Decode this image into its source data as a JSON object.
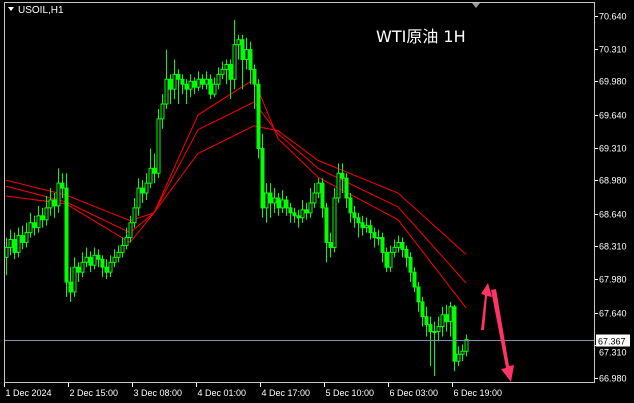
{
  "symbol_label": "USOIL,H1",
  "chart_data": {
    "type": "candlestick",
    "title": "WTI原油 1H",
    "ylim": [
      66.98,
      70.64
    ],
    "y_ticks": [
      "70.640",
      "70.310",
      "69.980",
      "69.640",
      "69.310",
      "68.980",
      "68.640",
      "68.310",
      "67.980",
      "67.640",
      "67.310",
      "66.980"
    ],
    "x_ticks": [
      {
        "label": "1 Dec 2024",
        "index": 0
      },
      {
        "label": "2 Dec 15:00",
        "index": 16
      },
      {
        "label": "3 Dec 08:00",
        "index": 32
      },
      {
        "label": "4 Dec 01:00",
        "index": 48
      },
      {
        "label": "4 Dec 17:00",
        "index": 64
      },
      {
        "label": "5 Dec 10:00",
        "index": 80
      },
      {
        "label": "6 Dec 03:00",
        "index": 96
      },
      {
        "label": "6 Dec 19:00",
        "index": 112
      }
    ],
    "current_price": "67.367",
    "grid": false,
    "colors": {
      "background": "#000000",
      "candle": "#00ff00",
      "moving_average": "#ff0000",
      "price_line": "#7f93a8",
      "arrow": "#ff3366",
      "axis": "#ffffff"
    },
    "candles": [
      [
        68.2,
        68.4,
        68.02,
        68.3
      ],
      [
        68.3,
        68.48,
        68.22,
        68.38
      ],
      [
        68.38,
        68.45,
        68.18,
        68.25
      ],
      [
        68.25,
        68.5,
        68.2,
        68.42
      ],
      [
        68.42,
        68.52,
        68.28,
        68.35
      ],
      [
        68.35,
        68.55,
        68.3,
        68.45
      ],
      [
        68.45,
        68.65,
        68.4,
        68.55
      ],
      [
        68.55,
        68.62,
        68.42,
        68.5
      ],
      [
        68.5,
        68.72,
        68.45,
        68.62
      ],
      [
        68.62,
        68.7,
        68.5,
        68.58
      ],
      [
        68.58,
        68.82,
        68.52,
        68.7
      ],
      [
        68.7,
        68.9,
        68.62,
        68.78
      ],
      [
        68.78,
        68.85,
        68.6,
        68.72
      ],
      [
        68.72,
        69.1,
        68.65,
        68.95
      ],
      [
        68.95,
        69.05,
        68.8,
        68.9
      ],
      [
        68.9,
        69.05,
        67.8,
        67.95
      ],
      [
        67.95,
        68.1,
        67.75,
        67.85
      ],
      [
        67.85,
        68.2,
        67.8,
        68.1
      ],
      [
        68.1,
        68.15,
        67.95,
        68.05
      ],
      [
        68.05,
        68.25,
        68.0,
        68.15
      ],
      [
        68.15,
        68.3,
        68.1,
        68.2
      ],
      [
        68.2,
        68.26,
        68.05,
        68.12
      ],
      [
        68.12,
        68.3,
        68.08,
        68.22
      ],
      [
        68.22,
        68.28,
        68.1,
        68.18
      ],
      [
        68.18,
        68.22,
        68.0,
        68.1
      ],
      [
        68.1,
        68.18,
        67.98,
        68.05
      ],
      [
        68.05,
        68.22,
        68.0,
        68.15
      ],
      [
        68.15,
        68.28,
        68.1,
        68.2
      ],
      [
        68.2,
        68.32,
        68.15,
        68.25
      ],
      [
        68.25,
        68.4,
        68.2,
        68.32
      ],
      [
        68.32,
        68.5,
        68.28,
        68.4
      ],
      [
        68.4,
        68.62,
        68.35,
        68.55
      ],
      [
        68.55,
        68.8,
        68.5,
        68.7
      ],
      [
        68.7,
        69.0,
        68.62,
        68.9
      ],
      [
        68.9,
        68.98,
        68.75,
        68.85
      ],
      [
        68.85,
        69.05,
        68.78,
        68.95
      ],
      [
        68.95,
        69.3,
        68.9,
        69.1
      ],
      [
        69.1,
        69.25,
        68.95,
        69.05
      ],
      [
        69.05,
        69.7,
        69.0,
        69.6
      ],
      [
        69.6,
        69.85,
        69.5,
        69.75
      ],
      [
        69.75,
        70.3,
        69.7,
        70.0
      ],
      [
        70.0,
        70.05,
        69.75,
        69.9
      ],
      [
        69.9,
        70.2,
        69.8,
        70.05
      ],
      [
        70.05,
        70.1,
        69.75,
        70.0
      ],
      [
        70.0,
        70.05,
        69.85,
        69.95
      ],
      [
        69.95,
        70.0,
        69.75,
        69.9
      ],
      [
        69.9,
        70.05,
        69.82,
        69.98
      ],
      [
        69.98,
        70.02,
        69.85,
        69.92
      ],
      [
        69.92,
        70.08,
        69.88,
        70.0
      ],
      [
        70.0,
        70.05,
        69.9,
        69.95
      ],
      [
        69.95,
        70.08,
        69.9,
        70.0
      ],
      [
        70.0,
        70.05,
        69.8,
        69.85
      ],
      [
        69.85,
        70.02,
        69.82,
        69.95
      ],
      [
        69.95,
        70.12,
        69.9,
        70.05
      ],
      [
        70.05,
        70.18,
        70.0,
        70.1
      ],
      [
        70.1,
        70.2,
        69.95,
        70.15
      ],
      [
        70.15,
        70.2,
        69.8,
        70.0
      ],
      [
        70.0,
        70.6,
        69.9,
        70.35
      ],
      [
        70.35,
        70.45,
        70.2,
        70.4
      ],
      [
        70.4,
        70.45,
        69.9,
        70.2
      ],
      [
        70.2,
        70.42,
        70.1,
        70.3
      ],
      [
        70.3,
        70.38,
        69.95,
        70.1
      ],
      [
        70.1,
        70.15,
        69.7,
        69.95
      ],
      [
        69.95,
        70.0,
        69.2,
        69.3
      ],
      [
        69.3,
        69.45,
        68.6,
        68.7
      ],
      [
        68.7,
        68.95,
        68.55,
        68.85
      ],
      [
        68.85,
        68.95,
        68.6,
        68.75
      ],
      [
        68.75,
        68.9,
        68.65,
        68.8
      ],
      [
        68.8,
        68.85,
        68.62,
        68.7
      ],
      [
        68.7,
        68.88,
        68.65,
        68.78
      ],
      [
        68.78,
        68.82,
        68.62,
        68.7
      ],
      [
        68.7,
        68.75,
        68.55,
        68.65
      ],
      [
        68.65,
        68.7,
        68.55,
        68.62
      ],
      [
        68.62,
        68.68,
        68.5,
        68.6
      ],
      [
        68.6,
        68.78,
        68.55,
        68.68
      ],
      [
        68.68,
        68.75,
        68.58,
        68.65
      ],
      [
        68.65,
        68.9,
        68.6,
        68.75
      ],
      [
        68.75,
        68.95,
        68.7,
        68.85
      ],
      [
        68.85,
        69.0,
        68.8,
        68.95
      ],
      [
        68.95,
        69.0,
        68.6,
        68.7
      ],
      [
        68.7,
        68.75,
        68.15,
        68.35
      ],
      [
        68.35,
        68.45,
        68.2,
        68.3
      ],
      [
        68.3,
        68.9,
        68.25,
        68.8
      ],
      [
        68.8,
        69.15,
        68.75,
        69.05
      ],
      [
        69.05,
        69.15,
        68.85,
        69.0
      ],
      [
        69.0,
        69.05,
        68.7,
        68.8
      ],
      [
        68.8,
        68.85,
        68.55,
        68.65
      ],
      [
        68.65,
        68.72,
        68.5,
        68.6
      ],
      [
        68.6,
        68.65,
        68.4,
        68.55
      ],
      [
        68.55,
        68.62,
        68.42,
        68.5
      ],
      [
        68.5,
        68.6,
        68.45,
        68.52
      ],
      [
        68.52,
        68.58,
        68.38,
        68.45
      ],
      [
        68.45,
        68.5,
        68.3,
        68.4
      ],
      [
        68.4,
        68.48,
        68.32,
        68.4
      ],
      [
        68.4,
        68.45,
        68.15,
        68.25
      ],
      [
        68.25,
        68.3,
        68.05,
        68.1
      ],
      [
        68.1,
        68.32,
        68.05,
        68.25
      ],
      [
        68.25,
        68.38,
        68.2,
        68.3
      ],
      [
        68.3,
        68.42,
        68.25,
        68.35
      ],
      [
        68.35,
        68.4,
        68.2,
        68.28
      ],
      [
        68.28,
        68.32,
        68.1,
        68.2
      ],
      [
        68.2,
        68.25,
        67.95,
        68.05
      ],
      [
        68.05,
        68.1,
        67.85,
        67.9
      ],
      [
        67.9,
        67.95,
        67.65,
        67.75
      ],
      [
        67.75,
        67.8,
        67.5,
        67.6
      ],
      [
        67.6,
        67.7,
        67.4,
        67.52
      ],
      [
        67.52,
        67.6,
        67.1,
        67.45
      ],
      [
        67.45,
        67.55,
        67.0,
        67.45
      ],
      [
        67.45,
        67.6,
        67.35,
        67.5
      ],
      [
        67.5,
        67.7,
        67.4,
        67.62
      ],
      [
        67.62,
        67.72,
        67.45,
        67.55
      ],
      [
        67.55,
        67.75,
        67.4,
        67.7
      ],
      [
        67.7,
        67.72,
        67.05,
        67.15
      ],
      [
        67.15,
        67.3,
        67.1,
        67.22
      ],
      [
        67.22,
        67.32,
        67.15,
        67.25
      ],
      [
        67.25,
        67.42,
        67.2,
        67.37
      ]
    ],
    "moving_averages": [
      {
        "points": [
          [
            0,
            68.98
          ],
          [
            15,
            68.83
          ],
          [
            31,
            68.57
          ],
          [
            37,
            68.65
          ],
          [
            48,
            69.25
          ],
          [
            62,
            69.53
          ],
          [
            68,
            69.48
          ],
          [
            78,
            69.18
          ],
          [
            98,
            68.85
          ],
          [
            115,
            68.23
          ]
        ]
      },
      {
        "points": [
          [
            0,
            68.92
          ],
          [
            15,
            68.76
          ],
          [
            31,
            68.45
          ],
          [
            37,
            68.65
          ],
          [
            48,
            69.49
          ],
          [
            62,
            69.77
          ],
          [
            68,
            69.45
          ],
          [
            78,
            69.1
          ],
          [
            98,
            68.71
          ],
          [
            115,
            67.94
          ]
        ]
      },
      {
        "points": [
          [
            0,
            68.82
          ],
          [
            15,
            68.74
          ],
          [
            31,
            68.35
          ],
          [
            37,
            68.65
          ],
          [
            48,
            69.64
          ],
          [
            62,
            70.0
          ],
          [
            68,
            69.4
          ],
          [
            78,
            69.01
          ],
          [
            98,
            68.58
          ],
          [
            115,
            67.69
          ]
        ]
      }
    ],
    "annotations": [
      {
        "type": "arrow",
        "direction": "up"
      },
      {
        "type": "arrow",
        "direction": "down"
      }
    ]
  }
}
